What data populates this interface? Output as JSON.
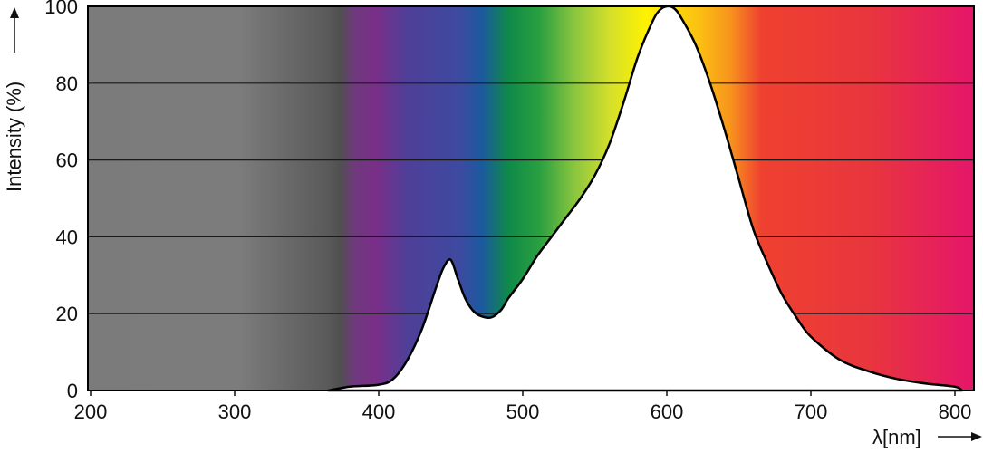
{
  "chart_data": {
    "type": "area",
    "title": "",
    "xlabel": "λ[nm]",
    "ylabel": "Intensity (%)",
    "xlim": [
      200,
      810
    ],
    "ylim": [
      0,
      100
    ],
    "x_ticks": [
      200,
      300,
      400,
      500,
      600,
      700,
      800
    ],
    "y_ticks": [
      0,
      20,
      40,
      60,
      80,
      100
    ],
    "grid": "horizontal",
    "background": "visible spectrum color gradient",
    "series": [
      {
        "name": "",
        "fill": "#ffffff",
        "stroke": "#000000",
        "x": [
          365,
          380,
          400,
          410,
          420,
          430,
          440,
          445,
          450,
          455,
          460,
          465,
          470,
          478,
          485,
          490,
          500,
          510,
          520,
          530,
          540,
          550,
          560,
          570,
          580,
          590,
          595,
          600,
          605,
          610,
          620,
          630,
          640,
          650,
          660,
          670,
          680,
          690,
          700,
          720,
          740,
          760,
          780,
          800,
          805
        ],
        "y": [
          0,
          1,
          1.5,
          3,
          8,
          16,
          27,
          32,
          34,
          29,
          24,
          21,
          19.5,
          19,
          21,
          24,
          29,
          35,
          40,
          45,
          50,
          56,
          64,
          75,
          87,
          96,
          99,
          100,
          99.5,
          97,
          90,
          80,
          68,
          55,
          42,
          33,
          25,
          19,
          14,
          8,
          5,
          3,
          1.8,
          1,
          0
        ]
      }
    ]
  }
}
